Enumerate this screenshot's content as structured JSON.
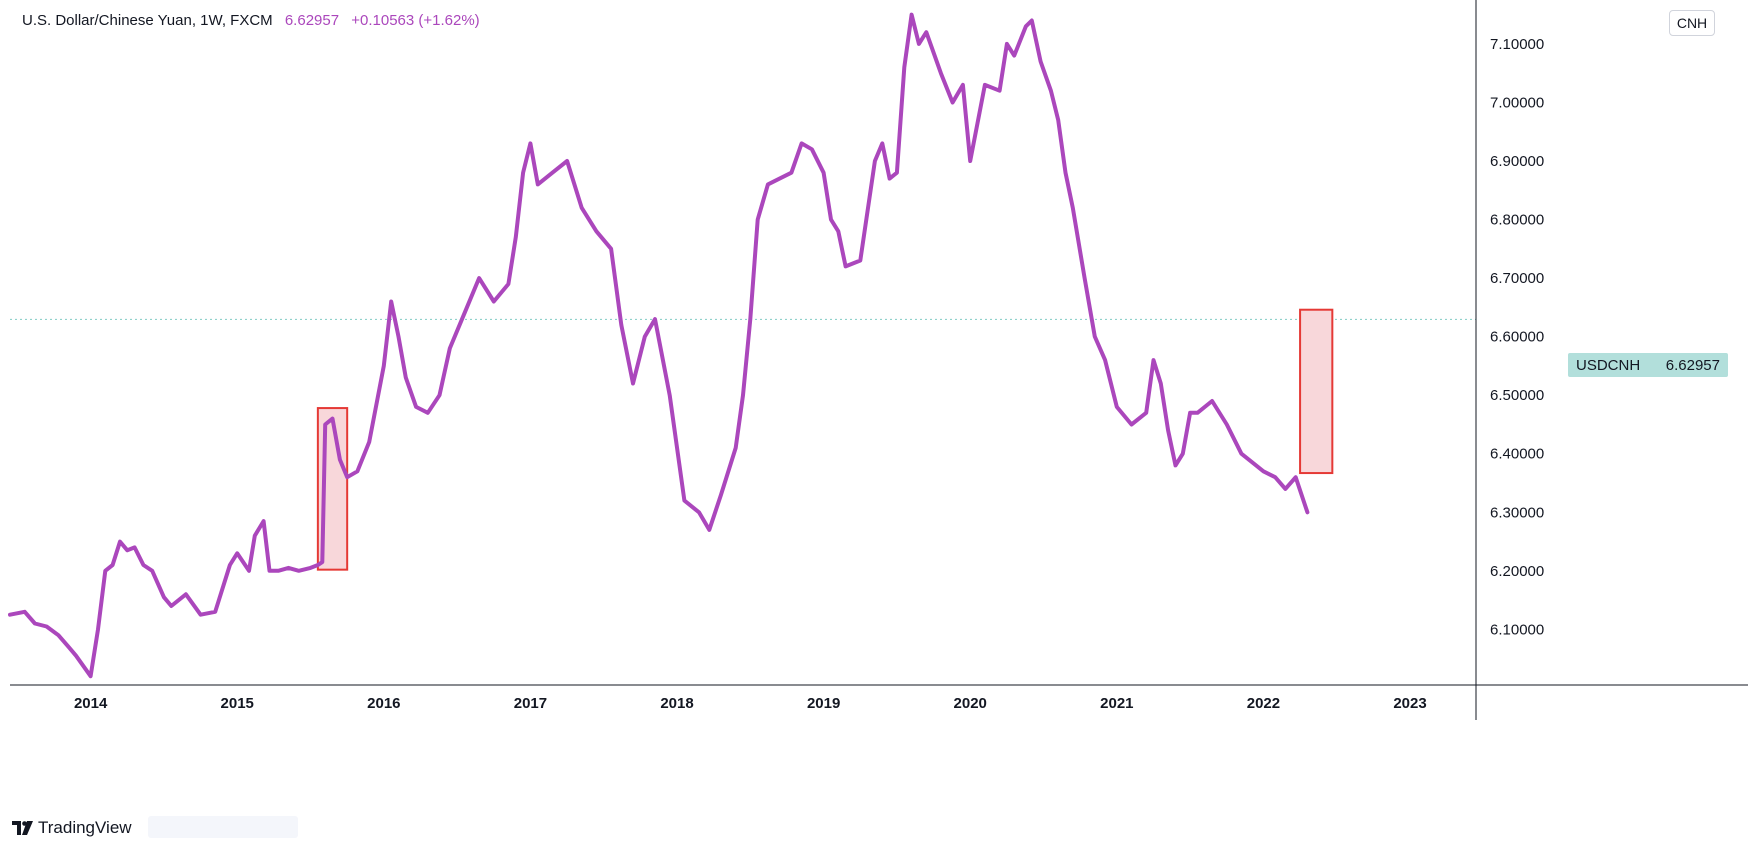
{
  "legend": {
    "symbol_desc": "U.S. Dollar/Chinese Yuan, 1W, FXCM",
    "last": "6.62957",
    "change": "+0.10563 (+1.62%)"
  },
  "currency_button": "CNH",
  "price_tag": {
    "symbol": "USDCNH",
    "value": "6.62957"
  },
  "footer": {
    "brand": "TradingView"
  },
  "colors": {
    "line": "#ab47bc",
    "highlight_fill": "#f8d7da",
    "highlight_stroke": "#e53935",
    "price_tag": "#b2dfdb",
    "price_line": "#80cbc4"
  },
  "chart_data": {
    "type": "line",
    "title": "",
    "xlabel": "",
    "ylabel": "",
    "ylim": [
      6.005,
      7.175
    ],
    "xlim": [
      2013.45,
      2023.45
    ],
    "y_ticks": [
      "7.10000",
      "7.00000",
      "6.90000",
      "6.80000",
      "6.70000",
      "6.60000",
      "6.50000",
      "6.40000",
      "6.30000",
      "6.20000",
      "6.10000"
    ],
    "x_ticks": [
      "2014",
      "2015",
      "2016",
      "2017",
      "2018",
      "2019",
      "2020",
      "2021",
      "2022",
      "2023"
    ],
    "grid": false,
    "last_price_line": 6.62957,
    "series": [
      {
        "x": [
          2013.45,
          2013.55,
          2013.62,
          2013.7,
          2013.78,
          2013.85,
          2013.9,
          2014.0,
          2014.05,
          2014.1,
          2014.15,
          2014.2,
          2014.25,
          2014.3,
          2014.36,
          2014.42,
          2014.5,
          2014.55,
          2014.65,
          2014.75,
          2014.85,
          2014.95,
          2015.0,
          2015.08,
          2015.12,
          2015.18,
          2015.22,
          2015.28,
          2015.35,
          2015.42,
          2015.5,
          2015.55,
          2015.58,
          2015.6,
          2015.65,
          2015.7,
          2015.75,
          2015.82,
          2015.9,
          2016.0,
          2016.05,
          2016.1,
          2016.15,
          2016.22,
          2016.3,
          2016.38,
          2016.45,
          2016.55,
          2016.65,
          2016.75,
          2016.85,
          2016.9,
          2016.95,
          2017.0,
          2017.05,
          2017.15,
          2017.25,
          2017.35,
          2017.45,
          2017.55,
          2017.62,
          2017.7,
          2017.78,
          2017.85,
          2017.95,
          2018.05,
          2018.15,
          2018.22,
          2018.3,
          2018.4,
          2018.45,
          2018.5,
          2018.55,
          2018.62,
          2018.7,
          2018.78,
          2018.85,
          2018.92,
          2019.0,
          2019.05,
          2019.1,
          2019.15,
          2019.25,
          2019.35,
          2019.4,
          2019.45,
          2019.5,
          2019.55,
          2019.6,
          2019.65,
          2019.7,
          2019.8,
          2019.88,
          2019.95,
          2020.0,
          2020.1,
          2020.2,
          2020.25,
          2020.3,
          2020.38,
          2020.42,
          2020.48,
          2020.55,
          2020.6,
          2020.65,
          2020.7,
          2020.78,
          2020.85,
          2020.92,
          2021.0,
          2021.1,
          2021.2,
          2021.25,
          2021.3,
          2021.35,
          2021.4,
          2021.45,
          2021.5,
          2021.55,
          2021.65,
          2021.75,
          2021.85,
          2021.95,
          2022.0,
          2022.08,
          2022.15,
          2022.22,
          2022.3
        ],
        "y": [
          6.125,
          6.13,
          6.11,
          6.105,
          6.09,
          6.07,
          6.055,
          6.02,
          6.1,
          6.2,
          6.21,
          6.25,
          6.235,
          6.24,
          6.21,
          6.2,
          6.155,
          6.14,
          6.16,
          6.125,
          6.13,
          6.21,
          6.23,
          6.2,
          6.26,
          6.285,
          6.2,
          6.2,
          6.205,
          6.2,
          6.205,
          6.21,
          6.215,
          6.45,
          6.46,
          6.39,
          6.36,
          6.37,
          6.42,
          6.55,
          6.66,
          6.6,
          6.53,
          6.48,
          6.47,
          6.5,
          6.58,
          6.64,
          6.7,
          6.66,
          6.69,
          6.77,
          6.88,
          6.93,
          6.86,
          6.88,
          6.9,
          6.82,
          6.78,
          6.75,
          6.62,
          6.52,
          6.6,
          6.63,
          6.5,
          6.32,
          6.3,
          6.27,
          6.33,
          6.41,
          6.5,
          6.63,
          6.8,
          6.86,
          6.87,
          6.88,
          6.93,
          6.92,
          6.88,
          6.8,
          6.78,
          6.72,
          6.73,
          6.9,
          6.93,
          6.87,
          6.88,
          7.06,
          7.15,
          7.1,
          7.12,
          7.05,
          7.0,
          7.03,
          6.9,
          7.03,
          7.02,
          7.1,
          7.08,
          7.13,
          7.14,
          7.07,
          7.02,
          6.97,
          6.88,
          6.82,
          6.7,
          6.6,
          6.56,
          6.48,
          6.45,
          6.47,
          6.56,
          6.52,
          6.44,
          6.38,
          6.4,
          6.47,
          6.47,
          6.49,
          6.45,
          6.4,
          6.38,
          6.37,
          6.36,
          6.34,
          6.36,
          6.3
        ]
      }
    ],
    "annotations": [
      {
        "type": "rect",
        "x0": 2015.55,
        "x1": 2015.75,
        "y0": 6.202,
        "y1": 6.478
      },
      {
        "type": "rect",
        "x0": 2022.25,
        "x1": 2022.47,
        "y0": 6.367,
        "y1": 6.646
      }
    ]
  }
}
